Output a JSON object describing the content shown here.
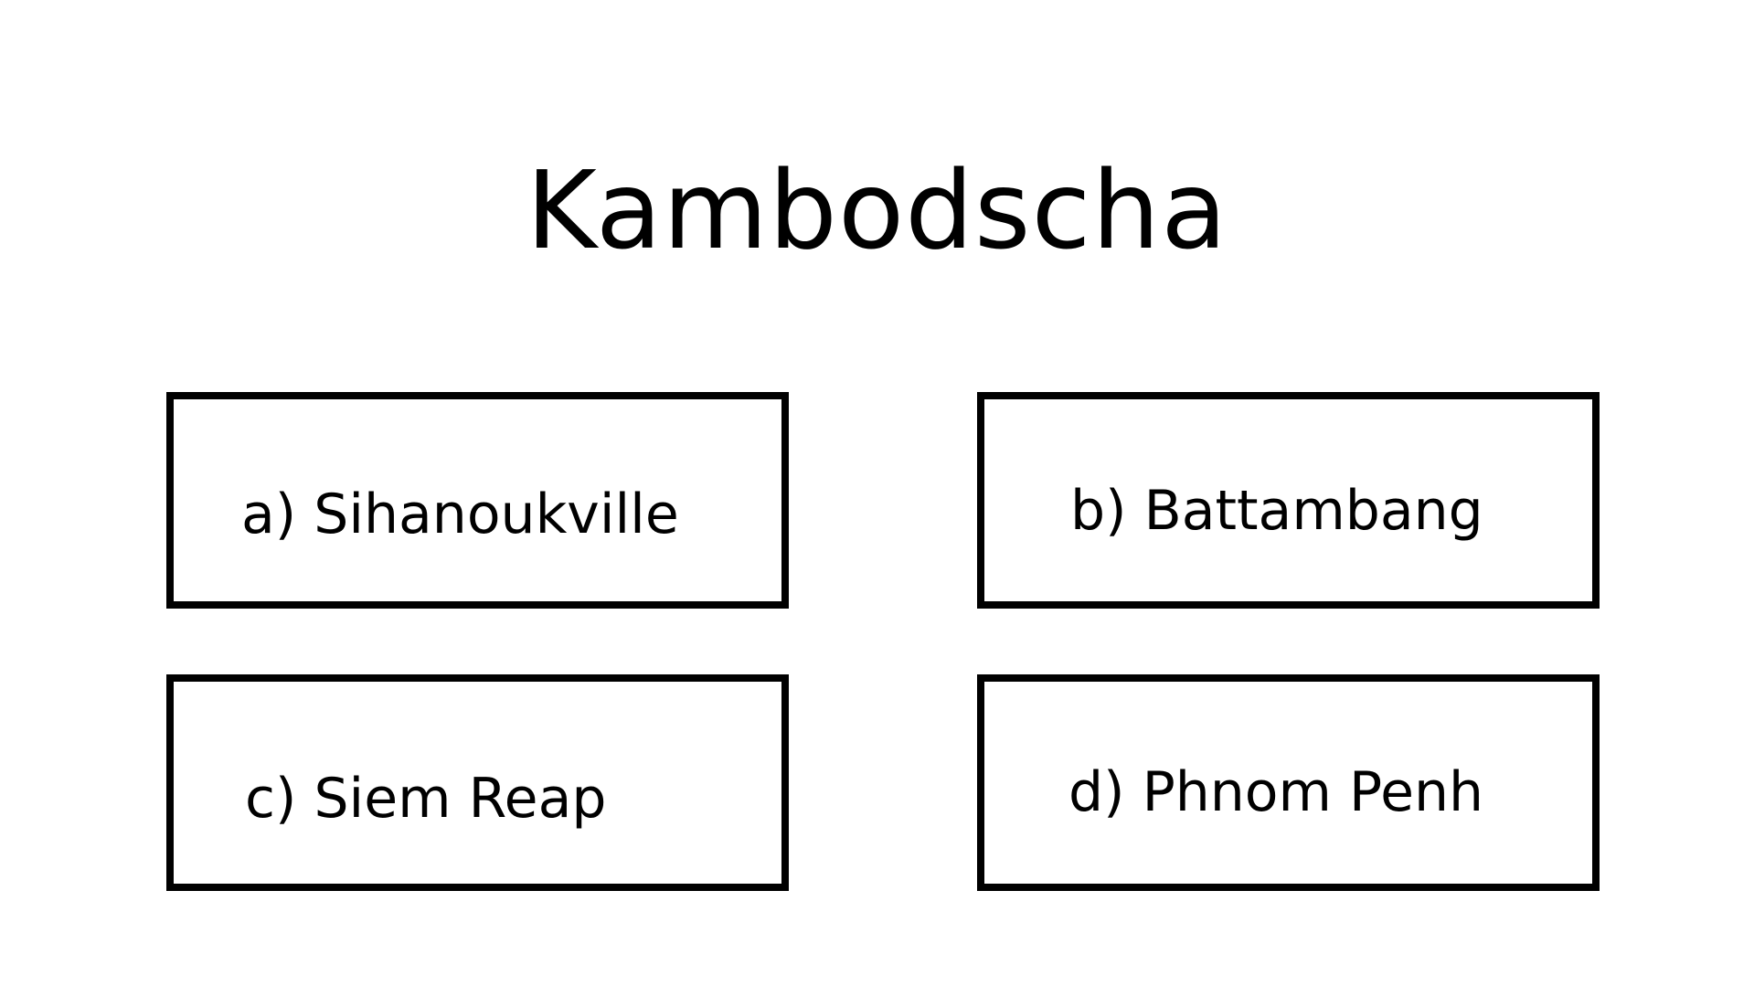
{
  "quiz": {
    "title": "Kambodscha",
    "answers": [
      {
        "label": "a) Sihanoukville"
      },
      {
        "label": "b) Battambang"
      },
      {
        "label": "c) Siem Reap"
      },
      {
        "label": "d) Phnom Penh"
      }
    ]
  }
}
